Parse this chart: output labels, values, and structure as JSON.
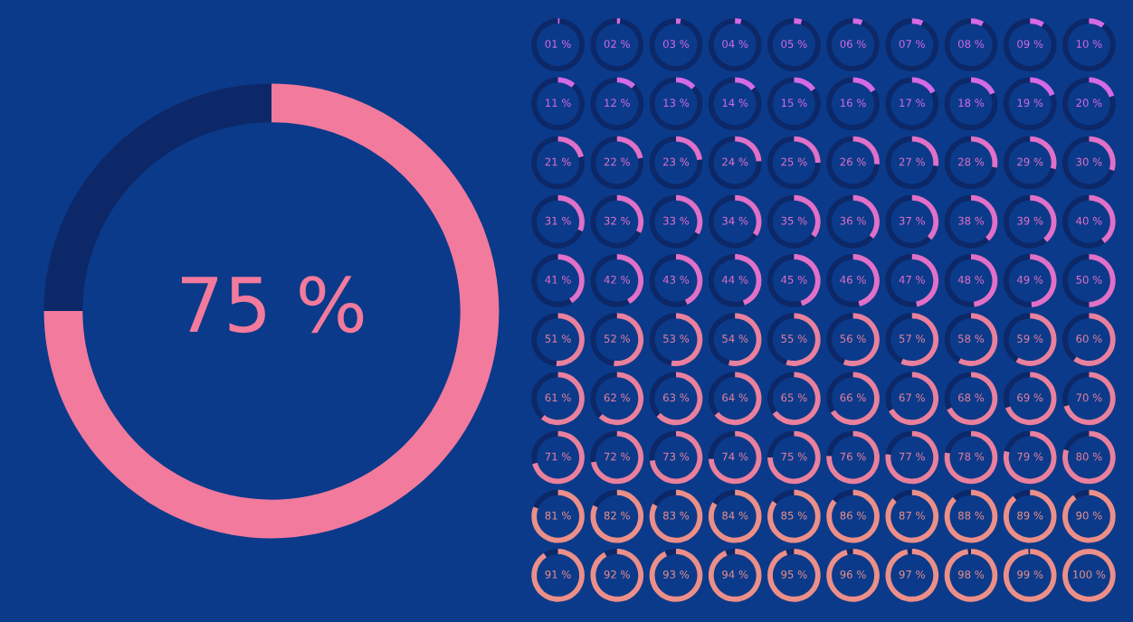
{
  "chart_data": [
    {
      "type": "donut",
      "categories": [
        null,
        null
      ],
      "values": [
        75,
        25
      ],
      "colors": [
        "#f27a9c",
        "#0c2868"
      ],
      "value_labels": [
        "75 %",
        null
      ]
    },
    {
      "type": "other",
      "values": [
        1,
        2,
        3,
        4,
        5,
        6,
        7,
        8,
        9,
        10,
        11,
        12,
        13,
        14,
        15,
        16,
        17,
        18,
        19,
        20,
        21,
        22,
        23,
        24,
        25,
        26,
        27,
        28,
        29,
        30,
        31,
        32,
        33,
        34,
        35,
        36,
        37,
        38,
        39,
        40,
        41,
        42,
        43,
        44,
        45,
        46,
        47,
        48,
        49,
        50,
        51,
        52,
        53,
        54,
        55,
        56,
        57,
        58,
        59,
        60,
        61,
        62,
        63,
        64,
        65,
        66,
        67,
        68,
        69,
        70,
        71,
        72,
        73,
        74,
        75,
        76,
        77,
        78,
        79,
        80,
        81,
        82,
        83,
        84,
        85,
        86,
        87,
        88,
        89,
        90,
        91,
        92,
        93,
        94,
        95,
        96,
        97,
        98,
        99,
        100
      ],
      "value_labels": [
        "01 %",
        "02 %",
        "03 %",
        "04 %",
        "05 %",
        "06 %",
        "07 %",
        "08 %",
        "09 %",
        "10 %",
        "11 %",
        "12 %",
        "13 %",
        "14 %",
        "15 %",
        "16 %",
        "17 %",
        "18 %",
        "19 %",
        "20 %",
        "21 %",
        "22 %",
        "23 %",
        "24 %",
        "25 %",
        "26 %",
        "27 %",
        "28 %",
        "29 %",
        "30 %",
        "31 %",
        "32 %",
        "33 %",
        "34 %",
        "35 %",
        "36 %",
        "37 %",
        "38 %",
        "39 %",
        "40 %",
        "41 %",
        "42 %",
        "43 %",
        "44 %",
        "45 %",
        "46 %",
        "47 %",
        "48 %",
        "49 %",
        "50 %",
        "51 %",
        "52 %",
        "53 %",
        "54 %",
        "55 %",
        "56 %",
        "57 %",
        "58 %",
        "59 %",
        "60 %",
        "61 %",
        "62 %",
        "63 %",
        "64 %",
        "65 %",
        "66 %",
        "67 %",
        "68 %",
        "69 %",
        "70 %",
        "71 %",
        "72 %",
        "73 %",
        "74 %",
        "75 %",
        "76 %",
        "77 %",
        "78 %",
        "79 %",
        "80 %",
        "81 %",
        "82 %",
        "83 %",
        "84 %",
        "85 %",
        "86 %",
        "87 %",
        "88 %",
        "89 %",
        "90 %",
        "91 %",
        "92 %",
        "93 %",
        "94 %",
        "95 %",
        "96 %",
        "97 %",
        "98 %",
        "99 %",
        "100 %"
      ],
      "colors": [
        "#d46ae6",
        "#d46ae6",
        "#d46ae6",
        "#d46ae6",
        "#d46ae6",
        "#d46ae6",
        "#d46ae6",
        "#d46ae6",
        "#d46ae6",
        "#d46ae6",
        "#d46ae6",
        "#d46ae6",
        "#d46ae6",
        "#d46ae6",
        "#d46ae6",
        "#d46ae6",
        "#d46ae6",
        "#d46ae6",
        "#d46ae6",
        "#d46ae6",
        "#e070c8",
        "#e070c8",
        "#e070c8",
        "#e070c8",
        "#e070c8",
        "#e070c8",
        "#e070c8",
        "#e070c8",
        "#e070c8",
        "#e070c8",
        "#e070c8",
        "#e070c8",
        "#e070c8",
        "#e070c8",
        "#e070c8",
        "#e070c8",
        "#e070c8",
        "#e070c8",
        "#e070c8",
        "#e070c8",
        "#e070c8",
        "#e070c8",
        "#e070c8",
        "#e070c8",
        "#e070c8",
        "#e070c8",
        "#e070c8",
        "#e070c8",
        "#e070c8",
        "#e070c8",
        "#e8809e",
        "#e8809e",
        "#e8809e",
        "#e8809e",
        "#e8809e",
        "#e8809e",
        "#e8809e",
        "#e8809e",
        "#e8809e",
        "#e8809e",
        "#e8809e",
        "#e8809e",
        "#e8809e",
        "#e8809e",
        "#e8809e",
        "#e8809e",
        "#e8809e",
        "#e8809e",
        "#e8809e",
        "#e8809e",
        "#e8809e",
        "#e8809e",
        "#e8809e",
        "#e8809e",
        "#e8809e",
        "#e8809e",
        "#e8809e",
        "#e8809e",
        "#e8809e",
        "#e8809e",
        "#eb8f8a",
        "#eb8f8a",
        "#eb8f8a",
        "#eb8f8a",
        "#eb8f8a",
        "#eb8f8a",
        "#eb8f8a",
        "#eb8f8a",
        "#eb8f8a",
        "#eb8f8a",
        "#eb8f8a",
        "#eb8f8a",
        "#eb8f8a",
        "#eb8f8a",
        "#eb8f8a",
        "#eb8f8a",
        "#eb8f8a",
        "#eb8f8a",
        "#eb8f8a",
        "#eb8f8a"
      ]
    }
  ]
}
